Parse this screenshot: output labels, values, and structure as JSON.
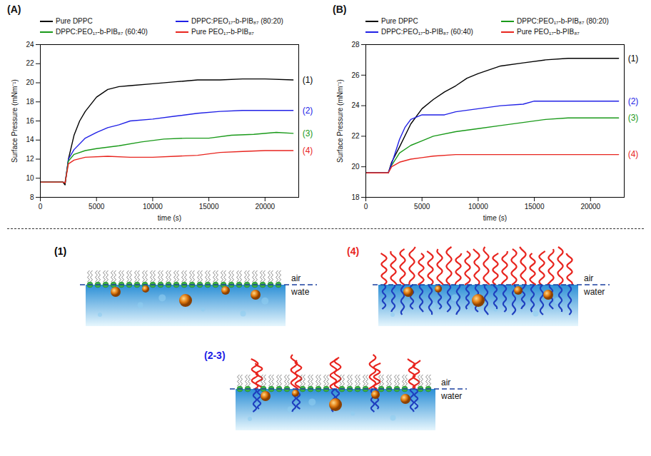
{
  "chart_data": [
    {
      "type": "line",
      "title": "(A)",
      "x_label": "time (s)",
      "y_label": "Surface Pressure (mNm⁻¹)",
      "xlim": [
        0,
        23000
      ],
      "xticks": [
        0,
        5000,
        10000,
        15000,
        20000
      ],
      "ylim": [
        8,
        24
      ],
      "yticks": [
        8,
        10,
        12,
        14,
        16,
        18,
        20,
        22,
        24
      ],
      "legend": "top",
      "series": [
        {
          "name": "Pure DPPC",
          "color": "#000000",
          "annotation": "(1)",
          "x": [
            0,
            2000,
            2200,
            2500,
            3000,
            3500,
            4000,
            5000,
            6000,
            7000,
            8000,
            10000,
            12000,
            14000,
            16000,
            18000,
            20000,
            22500
          ],
          "values": [
            9.6,
            9.6,
            9.3,
            12,
            14.5,
            16,
            17,
            18.5,
            19.3,
            19.6,
            19.7,
            19.9,
            20.1,
            20.3,
            20.3,
            20.4,
            20.4,
            20.3
          ]
        },
        {
          "name": "DPPC:PEO₁₇-b-PIB₈₇ (80:20)",
          "color": "#2020e6",
          "annotation": "(2)",
          "x": [
            0,
            2000,
            2200,
            2500,
            3000,
            4000,
            5000,
            6000,
            7000,
            8000,
            10000,
            12000,
            14000,
            16000,
            18000,
            20000,
            22500
          ],
          "values": [
            9.6,
            9.6,
            9.5,
            12,
            13,
            14.2,
            14.8,
            15.3,
            15.6,
            16,
            16.2,
            16.5,
            16.8,
            17,
            17.1,
            17.1,
            17.1
          ]
        },
        {
          "name": "DPPC:PEO₁₇-b-PIB₈₇ (60:40)",
          "color": "#1a9a1a",
          "annotation": "(3)",
          "x": [
            0,
            2000,
            2200,
            2500,
            3000,
            4000,
            5000,
            7000,
            9000,
            11000,
            13000,
            15000,
            17000,
            19000,
            21000,
            22500
          ],
          "values": [
            9.6,
            9.6,
            9.5,
            11.8,
            12.5,
            12.9,
            13.1,
            13.4,
            13.8,
            14.1,
            14.2,
            14.2,
            14.5,
            14.6,
            14.8,
            14.7
          ]
        },
        {
          "name": "Pure PEO₁₇-b-PIB₈₇",
          "color": "#e8251f",
          "annotation": "(4)",
          "x": [
            0,
            2000,
            2200,
            2500,
            3000,
            4000,
            6000,
            8000,
            10000,
            12000,
            14000,
            16000,
            18000,
            20000,
            22500
          ],
          "values": [
            9.6,
            9.6,
            9.5,
            11.5,
            11.9,
            12.2,
            12.3,
            12.2,
            12.2,
            12.3,
            12.4,
            12.7,
            12.8,
            12.9,
            12.9
          ]
        }
      ]
    },
    {
      "type": "line",
      "title": "(B)",
      "x_label": "time (s)",
      "y_label": "Surface Pressure (mNm⁻¹)",
      "xlim": [
        0,
        23000
      ],
      "xticks": [
        0,
        5000,
        10000,
        15000,
        20000
      ],
      "ylim": [
        18,
        28
      ],
      "yticks": [
        18,
        20,
        22,
        24,
        26,
        28
      ],
      "legend": "top",
      "series": [
        {
          "name": "Pure DPPC",
          "color": "#000000",
          "annotation": "(1)",
          "x": [
            0,
            2000,
            2300,
            3000,
            4000,
            5000,
            6000,
            7000,
            8000,
            9000,
            10000,
            12000,
            14000,
            16000,
            18000,
            20000,
            22500
          ],
          "values": [
            19.6,
            19.6,
            20.3,
            21.3,
            22.8,
            23.8,
            24.4,
            24.9,
            25.3,
            25.8,
            26.1,
            26.6,
            26.8,
            27,
            27.1,
            27.1,
            27.1
          ]
        },
        {
          "name": "DPPC:PEO₁₇-b-PIB₈₇ (80:20)",
          "color": "#1a9a1a",
          "annotation": "(3)",
          "x": [
            0,
            2000,
            2300,
            3000,
            4000,
            5000,
            6000,
            8000,
            10000,
            12000,
            14000,
            16000,
            18000,
            22500
          ],
          "values": [
            19.6,
            19.6,
            20.1,
            20.9,
            21.4,
            21.7,
            22,
            22.3,
            22.5,
            22.7,
            22.9,
            23.1,
            23.2,
            23.2
          ]
        },
        {
          "name": "DPPC:PEO₁₇-b-PIB₈₇ (60:40)",
          "color": "#2020e6",
          "annotation": "(2)",
          "x": [
            0,
            2000,
            2300,
            3000,
            3500,
            4000,
            5000,
            6000,
            7000,
            8000,
            10000,
            12000,
            14000,
            15000,
            22500
          ],
          "values": [
            19.6,
            19.6,
            20.2,
            21.8,
            22.6,
            23.1,
            23.4,
            23.4,
            23.4,
            23.6,
            23.8,
            24,
            24.1,
            24.3,
            24.3
          ]
        },
        {
          "name": "Pure PEO₁₇-b-PIB₈₇",
          "color": "#e8251f",
          "annotation": "(4)",
          "x": [
            0,
            2000,
            2300,
            3000,
            4000,
            5000,
            6000,
            8000,
            15000,
            22500
          ],
          "values": [
            19.6,
            19.6,
            20,
            20.3,
            20.5,
            20.6,
            20.7,
            20.8,
            20.8,
            20.8
          ]
        }
      ]
    }
  ],
  "diagram": {
    "panels": [
      {
        "label": "(1)",
        "color": "#000000",
        "texts": [
          "air",
          "wate"
        ]
      },
      {
        "label": "(4)",
        "color": "#e8251f",
        "texts": [
          "air",
          "water"
        ]
      },
      {
        "label": "(2-3)",
        "color": "#2020e6",
        "texts": [
          "air",
          "water"
        ]
      }
    ]
  }
}
